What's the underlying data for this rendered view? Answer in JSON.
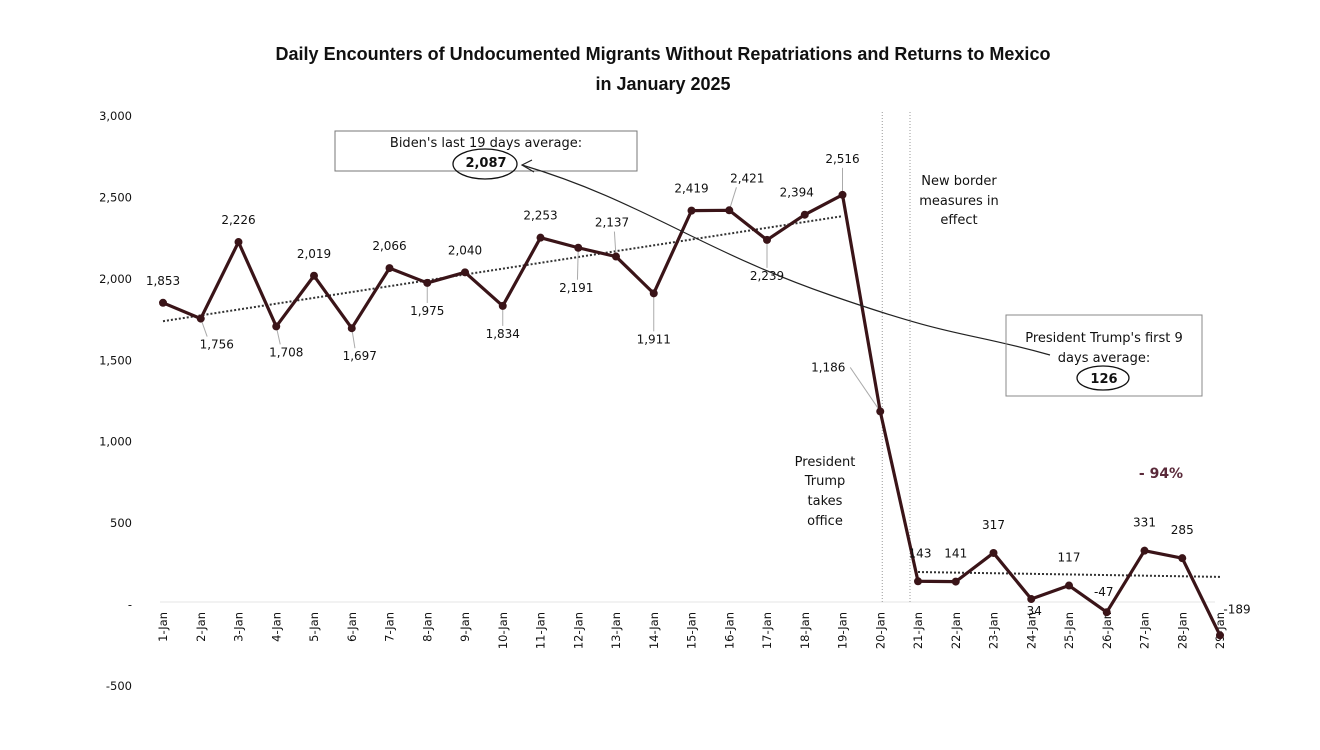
{
  "chart_data": {
    "type": "line",
    "title": "Daily Encounters of Undocumented Migrants Without Repatriations and Returns to Mexico",
    "subtitle": "in January 2025",
    "xlabel": "",
    "ylabel": "",
    "ylim": [
      -500,
      3000
    ],
    "yticks": [
      {
        "value": 3000,
        "label": "3,000"
      },
      {
        "value": 2500,
        "label": "2,500"
      },
      {
        "value": 2000,
        "label": "2,000"
      },
      {
        "value": 1500,
        "label": "1,500"
      },
      {
        "value": 1000,
        "label": "1,000"
      },
      {
        "value": 500,
        "label": "500"
      },
      {
        "value": 0,
        "label": "-"
      },
      {
        "value": -500,
        "label": "-500"
      }
    ],
    "grid": false,
    "categories": [
      "1-Jan",
      "2-Jan",
      "3-Jan",
      "4-Jan",
      "5-Jan",
      "6-Jan",
      "7-Jan",
      "8-Jan",
      "9-Jan",
      "10-Jan",
      "11-Jan",
      "12-Jan",
      "13-Jan",
      "14-Jan",
      "15-Jan",
      "16-Jan",
      "17-Jan",
      "18-Jan",
      "19-Jan",
      "20-Jan",
      "21-Jan",
      "22-Jan",
      "23-Jan",
      "24-Jan",
      "25-Jan",
      "26-Jan",
      "27-Jan",
      "28-Jan",
      "29-Jan"
    ],
    "series": [
      {
        "name": "Daily encounters",
        "color": "#3a1418",
        "values": [
          1853,
          1756,
          2226,
          1708,
          2019,
          1697,
          2066,
          1975,
          2040,
          1834,
          2253,
          2191,
          2137,
          1911,
          2419,
          2421,
          2239,
          2394,
          2516,
          1186,
          143,
          141,
          317,
          34,
          117,
          -47,
          331,
          285,
          -189
        ],
        "labels": [
          "1,853",
          "1,756",
          "2,226",
          "1,708",
          "2,019",
          "1,697",
          "2,066",
          "1,975",
          "2,040",
          "1,834",
          "2,253",
          "2,191",
          "2,137",
          "1,911",
          "2,419",
          "2,421",
          "2,239",
          "2,394",
          "2,516",
          "1,186",
          "143",
          "141",
          "317",
          "34",
          "117",
          "-47",
          "331",
          "285",
          "-189"
        ]
      }
    ],
    "trendlines": [
      {
        "name": "Biden period trend",
        "from_index": 0,
        "to_index": 18,
        "start_value": 1740,
        "end_value": 2385
      },
      {
        "name": "Trump period trend",
        "from_index": 20,
        "to_index": 28,
        "start_value": 200,
        "end_value": 170
      }
    ],
    "annotations": {
      "biden_box": {
        "line1": "Biden's last 19 days average:",
        "value": "2,087"
      },
      "trump_box": {
        "line1": "President Trump's first 9",
        "line2": "days average:",
        "value": "126"
      },
      "trump_takes_office": [
        "President",
        "Trump",
        "takes",
        "office"
      ],
      "new_measures": [
        "New border",
        "measures in",
        "effect"
      ],
      "percent_change": "- 94%"
    },
    "colors": {
      "line": "#3a1418",
      "trend": "#333333",
      "percent": "#5a2a3a"
    }
  }
}
